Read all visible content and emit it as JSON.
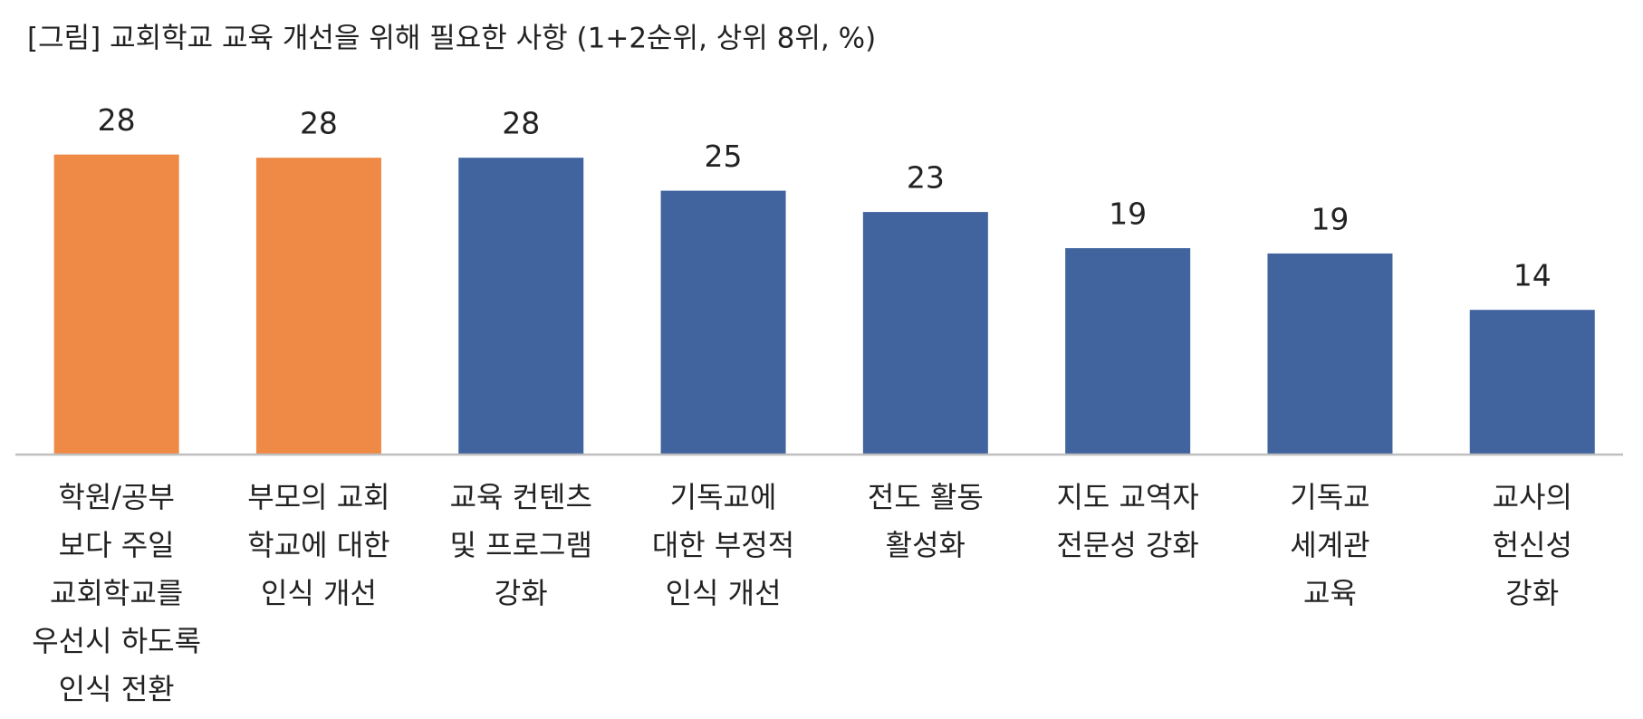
{
  "chart_data": {
    "type": "bar",
    "title": "[그림] 교회학교 교육 개선을 위해 필요한 사항 (1+2순위, 상위 8위, %)",
    "categories": [
      [
        "학원/공부",
        "보다 주일",
        "교회학교를",
        "우선시 하도록",
        "인식 전환"
      ],
      [
        "부모의 교회",
        "학교에 대한",
        "인식 개선"
      ],
      [
        "교육 컨텐츠",
        "및 프로그램",
        "강화"
      ],
      [
        "기독교에",
        "대한 부정적",
        "인식 개선"
      ],
      [
        "전도 활동",
        "활성화"
      ],
      [
        "지도 교역자",
        "전문성 강화"
      ],
      [
        "기독교",
        "세계관",
        "교육"
      ],
      [
        "교사의",
        "헌신성",
        "강화"
      ]
    ],
    "values": [
      28.2,
      27.9,
      27.9,
      24.8,
      22.8,
      19.4,
      18.9,
      13.6
    ],
    "value_labels": [
      "28",
      "28",
      "28",
      "25",
      "23",
      "19",
      "19",
      "14"
    ],
    "colors": [
      "#ee8946",
      "#ee8946",
      "#41649f",
      "#41649f",
      "#41649f",
      "#41649f",
      "#41649f",
      "#41649f"
    ]
  }
}
